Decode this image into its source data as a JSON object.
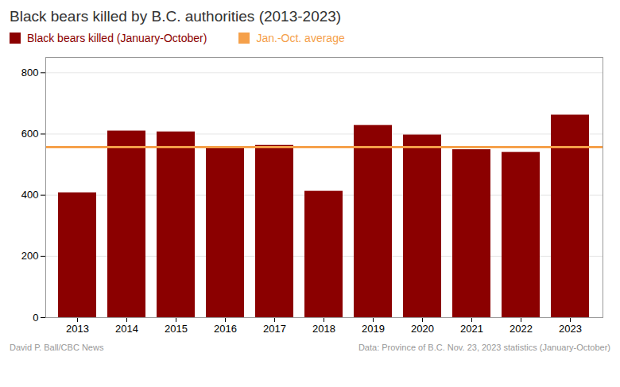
{
  "chart_data": {
    "type": "bar",
    "title": "Black bears killed by B.C. authorities (2013-2023)",
    "categories": [
      "2013",
      "2014",
      "2015",
      "2016",
      "2017",
      "2018",
      "2019",
      "2020",
      "2021",
      "2022",
      "2023"
    ],
    "series": [
      {
        "name": "Black bears killed (January-October)",
        "type": "bar",
        "color": "#8B0000",
        "values": [
          408,
          610,
          607,
          556,
          563,
          413,
          628,
          597,
          549,
          540,
          662
        ]
      },
      {
        "name": "Jan.-Oct. average",
        "type": "line",
        "color": "#F5A04A",
        "values": [
          558,
          558,
          558,
          558,
          558,
          558,
          558,
          558,
          558,
          558,
          558
        ]
      }
    ],
    "ylim": [
      0,
      850
    ],
    "yticks": [
      0,
      200,
      400,
      600,
      800
    ],
    "grid": true,
    "legend": "top",
    "annotations": [
      "David P. Ball/CBC News",
      "Data: Province of B.C. Nov. 23, 2023 statistics (January-October)"
    ]
  }
}
